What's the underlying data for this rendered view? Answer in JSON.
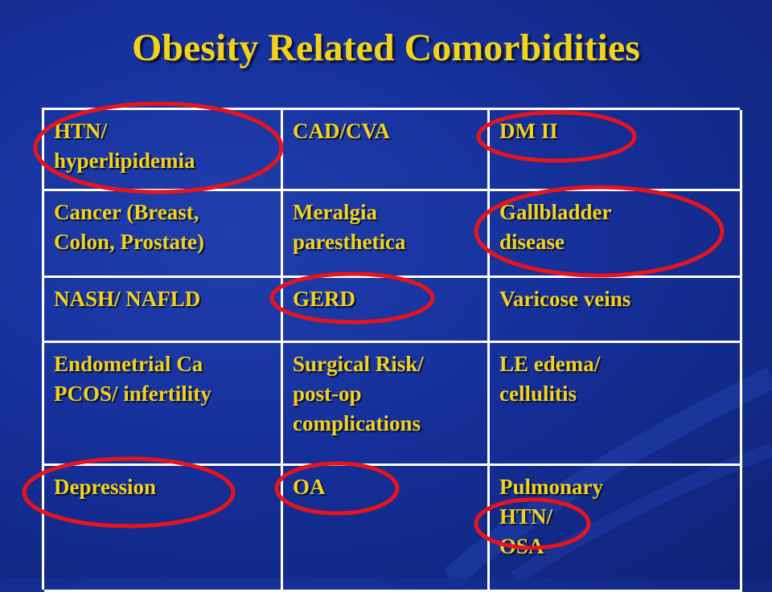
{
  "slide": {
    "title": "Obesity Related Comorbidities",
    "text_color": "#f2d21a",
    "background_color": "#16309a",
    "grid_line_color": "#ffffff",
    "circle_color": "#e8141b"
  },
  "table": {
    "rows": [
      [
        "HTN/\nhyperlipidemia",
        "CAD/CVA",
        "DM II"
      ],
      [
        "Cancer (Breast,\nColon, Prostate)",
        "Meralgia\nparesthetica",
        "Gallbladder\ndisease"
      ],
      [
        "NASH/ NAFLD",
        "GERD",
        "Varicose veins"
      ],
      [
        "Endometrial Ca\nPCOS/ infertility",
        "Surgical Risk/\npost-op\ncomplications",
        "LE edema/\ncellulitis"
      ],
      [
        "Depression",
        "OA",
        "Pulmonary\nHTN/\nOSA"
      ]
    ],
    "circled_items": [
      "HTN/\nhyperlipidemia",
      "DM II",
      "Gallbladder\ndisease",
      "GERD",
      "Depression",
      "OA",
      "HTN/"
    ]
  }
}
